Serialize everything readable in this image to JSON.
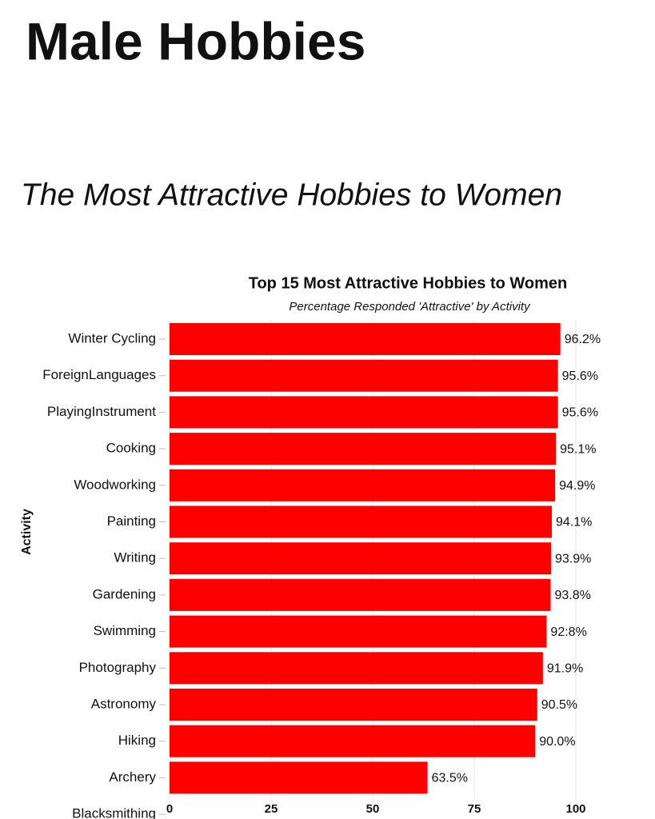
{
  "page": {
    "heading": "Male Hobbies",
    "subheading": "The Most Attractive Hobbies to Women"
  },
  "chart_data": {
    "type": "hbar",
    "title": "Top 15 Most Attractive Hobbies to Women",
    "subtitle": "Percentage Responded 'Attractive' by Activity",
    "y_label": "Activity",
    "categories": [
      "Winter Cycling",
      "ForeignLanguages",
      "PlayingInstrument",
      "Cooking",
      "Woodworking",
      "Painting",
      "Writing",
      "Gardening",
      "Swimming",
      "Photography",
      "Astronomy",
      "Hiking",
      "Archery",
      "Blacksmithing"
    ],
    "values": [
      96.2,
      95.6,
      95.6,
      95.1,
      94.9,
      94.1,
      93.9,
      93.8,
      92.8,
      91.9,
      90.5,
      90.0,
      63.5,
      null
    ],
    "value_labels": [
      "96.2%",
      "95.6%",
      "95.6%",
      "95.1%",
      "94.9%",
      "94.1%",
      "93.9%",
      "93.8%",
      "92:8%",
      "91.9%",
      "90.5%",
      "90.0%",
      "63.5%",
      null
    ],
    "color": "#ff0000",
    "xlim": [
      0,
      100
    ],
    "xticks": [
      0,
      25,
      50,
      75,
      100
    ],
    "grid": true
  }
}
